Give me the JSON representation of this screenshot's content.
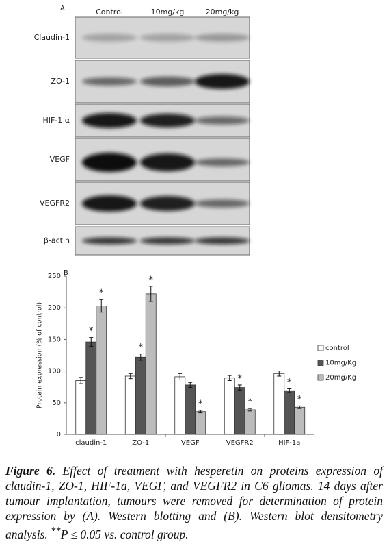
{
  "blot": {
    "panel_label": "A",
    "lanes": [
      "Control",
      "10mg/kg",
      "20mg/kg"
    ],
    "rows": [
      "Claudin-1",
      "ZO-1",
      "HIF-1 α",
      "VEGF",
      "VEGFR2",
      "β-actin"
    ]
  },
  "chart_data": {
    "type": "bar",
    "panel_label": "B",
    "y_label": "Protein expression (% of control)",
    "categories": [
      "claudin-1",
      "ZO-1",
      "VEGF",
      "VEGFR2",
      "HIF-1a"
    ],
    "series": [
      {
        "name": "control",
        "color": "#ffffff",
        "values": [
          85,
          92,
          91,
          89,
          96
        ],
        "errors": [
          5,
          4,
          5,
          4,
          4
        ]
      },
      {
        "name": "10mg/Kg",
        "color": "#555555",
        "values": [
          146,
          122,
          78,
          74,
          69
        ],
        "errors": [
          7,
          5,
          4,
          4,
          3
        ],
        "significance": [
          "*",
          "*",
          null,
          "*",
          "*"
        ]
      },
      {
        "name": "20mg/Kg",
        "color": "#bcbcbc",
        "values": [
          203,
          222,
          36,
          39,
          43
        ],
        "errors": [
          10,
          12,
          2,
          2,
          2
        ],
        "significance": [
          "*",
          "*",
          "*",
          "*",
          "*"
        ]
      }
    ],
    "ylim": [
      0,
      250
    ],
    "yticks": [
      0,
      50,
      100,
      150,
      200,
      250
    ],
    "grid": false
  },
  "caption": {
    "label": "Figure 6.",
    "text": "Effect of treatment with hesperetin on proteins expression of claudin-1, ZO-1, HIF-1a, VEGF, and VEGFR2 in C6 gliomas. 14 days after tumour implantation, tumours were removed for determination of protein expression by (A). Western blotting and (B). Western blot densitometry analysis.",
    "note_mark": "**",
    "note": "P ≤ 0.05 vs. control group."
  }
}
